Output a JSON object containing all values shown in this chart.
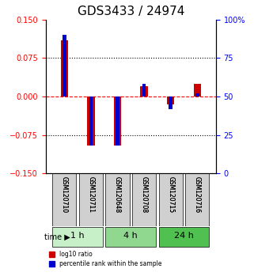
{
  "title": "GDS3433 / 24974",
  "samples": [
    "GSM120710",
    "GSM120711",
    "GSM120648",
    "GSM120708",
    "GSM120715",
    "GSM120716"
  ],
  "time_groups": [
    {
      "label": "1 h",
      "span": [
        0,
        2
      ],
      "color": "#c8f0c8"
    },
    {
      "label": "4 h",
      "span": [
        2,
        4
      ],
      "color": "#90d890"
    },
    {
      "label": "24 h",
      "span": [
        4,
        6
      ],
      "color": "#50c050"
    }
  ],
  "log10_ratio": [
    0.11,
    -0.095,
    -0.095,
    0.02,
    -0.015,
    0.025
  ],
  "percentile_rank": [
    90,
    18,
    18,
    58,
    42,
    52
  ],
  "ylim_left": [
    -0.15,
    0.15
  ],
  "ylim_right": [
    0,
    100
  ],
  "yticks_left": [
    -0.15,
    -0.075,
    0,
    0.075,
    0.15
  ],
  "yticks_right": [
    0,
    25,
    50,
    75,
    100
  ],
  "bar_width": 0.35,
  "red_color": "#cc0000",
  "blue_color": "#0000cc",
  "dotted_line_color": "black",
  "dashed_line_color": "red",
  "title_fontsize": 11,
  "tick_fontsize": 7,
  "label_fontsize": 7,
  "background_color": "#ffffff"
}
